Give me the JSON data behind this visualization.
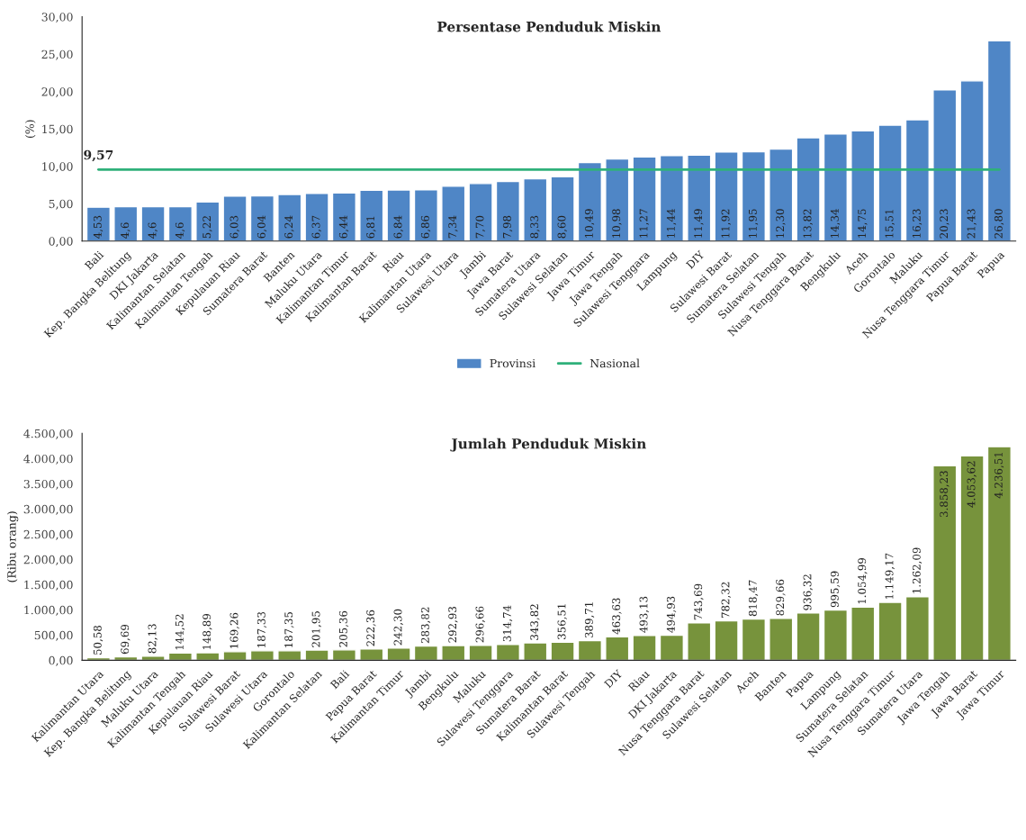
{
  "chart_data": [
    {
      "type": "bar",
      "title": "Persentase Penduduk Miskin",
      "ylabel": "(%)",
      "categories": [
        "Bali",
        "Kep. Bangka Belitung",
        "DKI Jakarta",
        "Kalimantan Selatan",
        "Kalimantan Tengah",
        "Kepulauan Riau",
        "Sumatera Barat",
        "Banten",
        "Maluku Utara",
        "Kalimantan Timur",
        "Kalimantan Barat",
        "Riau",
        "Kalimantan Utara",
        "Sulawesi Utara",
        "Jambi",
        "Jawa Barat",
        "Sumatera Utara",
        "Sulawesi Selatan",
        "Jawa Timur",
        "Jawa Tengah",
        "Sulawesi Tenggara",
        "Lampung",
        "DIY",
        "Sulawesi Barat",
        "Sumatera Selatan",
        "Sulawesi Tengah",
        "Nusa Tenggara Barat",
        "Bengkulu",
        "Aceh",
        "Gorontalo",
        "Maluku",
        "Nusa Tenggara Timur",
        "Papua Barat",
        "Papua"
      ],
      "series": [
        {
          "name": "Provinsi",
          "color": "#4f86c6",
          "values": [
            4.53,
            4.6,
            4.6,
            4.6,
            5.22,
            6.03,
            6.04,
            6.24,
            6.37,
            6.44,
            6.81,
            6.84,
            6.86,
            7.34,
            7.7,
            7.98,
            8.33,
            8.6,
            10.49,
            10.98,
            11.27,
            11.44,
            11.49,
            11.92,
            11.95,
            12.3,
            13.82,
            14.34,
            14.75,
            15.51,
            16.23,
            20.23,
            21.43,
            26.8
          ],
          "value_labels": [
            "4,53",
            "4,6",
            "4,6",
            "4,6",
            "5,22",
            "6,03",
            "6,04",
            "6,24",
            "6,37",
            "6,44",
            "6,81",
            "6,84",
            "6,86",
            "7,34",
            "7,70",
            "7,98",
            "8,33",
            "8,60",
            "10,49",
            "10,98",
            "11,27",
            "11,44",
            "11,49",
            "11,92",
            "11,95",
            "12,30",
            "13,82",
            "14,34",
            "14,75",
            "15,51",
            "16,23",
            "20,23",
            "21,43",
            "26,80"
          ]
        },
        {
          "name": "Nasional",
          "type": "line",
          "color": "#2fb07a",
          "values": [
            9.57,
            9.57,
            9.57,
            9.57,
            9.57,
            9.57,
            9.57,
            9.57,
            9.57,
            9.57,
            9.57,
            9.57,
            9.57,
            9.57,
            9.57,
            9.57,
            9.57,
            9.57,
            9.57,
            9.57,
            9.57,
            9.57,
            9.57,
            9.57,
            9.57,
            9.57,
            9.57,
            9.57,
            9.57,
            9.57,
            9.57,
            9.57,
            9.57,
            9.57
          ]
        }
      ],
      "annotations": [
        {
          "text": "9,57",
          "x": "Bali",
          "y": 9.57
        }
      ],
      "ylim": [
        0,
        30
      ],
      "yticks": [
        {
          "value": 0,
          "label": "0,00"
        },
        {
          "value": 5,
          "label": "5,00"
        },
        {
          "value": 10,
          "label": "10,00"
        },
        {
          "value": 15,
          "label": "15,00"
        },
        {
          "value": 20,
          "label": "20,00"
        },
        {
          "value": 25,
          "label": "25,00"
        },
        {
          "value": 30,
          "label": "30,00"
        }
      ],
      "legend": "bottom",
      "grid": false
    },
    {
      "type": "bar",
      "title": "Jumlah Penduduk Miskin",
      "ylabel": "(Ribu orang)",
      "categories": [
        "Kalimantan Utara",
        "Kep. Bangka Belitung",
        "Maluku Utara",
        "Kalimantan Tengah",
        "Kepulauan Riau",
        "Sulawesi Barat",
        "Sulawesi Utara",
        "Gorontalo",
        "Kalimantan Selatan",
        "Bali",
        "Papua Barat",
        "Kalimantan Timur",
        "Jambi",
        "Bengkulu",
        "Maluku",
        "Sulawesi Tenggara",
        "Sumatera Barat",
        "Kalimantan Barat",
        "Sulawesi Tengah",
        "DIY",
        "Riau",
        "DKI Jakarta",
        "Nusa Tenggara Barat",
        "Sulawesi Selatan",
        "Aceh",
        "Banten",
        "Papua",
        "Lampung",
        "Sumatera Selatan",
        "Nusa Tenggara Timur",
        "Sumatera Utara",
        "Jawa Tengah",
        "Jawa Barat",
        "Jawa Timur"
      ],
      "series": [
        {
          "color": "#77933c",
          "values": [
            50.58,
            69.69,
            82.13,
            144.52,
            148.89,
            169.26,
            187.33,
            187.35,
            201.95,
            205.36,
            222.36,
            242.3,
            283.82,
            292.93,
            296.66,
            314.74,
            343.82,
            356.51,
            389.71,
            463.63,
            493.13,
            494.93,
            743.69,
            782.32,
            818.47,
            829.66,
            936.32,
            995.59,
            1054.99,
            1149.17,
            1262.09,
            3858.23,
            4053.62,
            4236.51
          ],
          "value_labels": [
            "50,58",
            "69,69",
            "82,13",
            "144,52",
            "148,89",
            "169,26",
            "187,33",
            "187,35",
            "201,95",
            "205,36",
            "222,36",
            "242,30",
            "283,82",
            "292,93",
            "296,66",
            "314,74",
            "343,82",
            "356,51",
            "389,71",
            "463,63",
            "493,13",
            "494,93",
            "743,69",
            "782,32",
            "818,47",
            "829,66",
            "936,32",
            "995,59",
            "1.054,99",
            "1.149,17",
            "1.262,09",
            "3.858,23",
            "4.053,62",
            "4.236,51"
          ]
        }
      ],
      "ylim": [
        0,
        4500
      ],
      "yticks": [
        {
          "value": 0,
          "label": "0,00"
        },
        {
          "value": 500,
          "label": "500,00"
        },
        {
          "value": 1000,
          "label": "1.000,00"
        },
        {
          "value": 1500,
          "label": "1.500,00"
        },
        {
          "value": 2000,
          "label": "2.000,00"
        },
        {
          "value": 2500,
          "label": "2.500,00"
        },
        {
          "value": 3000,
          "label": "3.000,00"
        },
        {
          "value": 3500,
          "label": "3.500,00"
        },
        {
          "value": 4000,
          "label": "4.000,00"
        },
        {
          "value": 4500,
          "label": "4.500,00"
        }
      ],
      "legend": false,
      "grid": false
    }
  ]
}
